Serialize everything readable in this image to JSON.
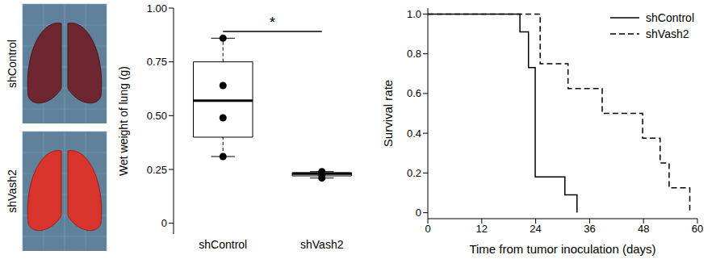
{
  "images": {
    "labels": [
      "shControl",
      "shVash2"
    ]
  },
  "chart_data": [
    {
      "type": "box",
      "ylabel": "Wet weight of lung (g)",
      "categories": [
        "shControl",
        "shVash2"
      ],
      "boxes": [
        {
          "min": 0.31,
          "q1": 0.4,
          "median": 0.57,
          "q3": 0.75,
          "max": 0.86,
          "points": [
            0.86,
            0.64,
            0.49,
            0.31
          ]
        },
        {
          "min": 0.21,
          "q1": 0.22,
          "median": 0.23,
          "q3": 0.235,
          "max": 0.24,
          "points": [
            0.24,
            0.225,
            0.21
          ]
        }
      ],
      "color": "#000000",
      "ylim": [
        -0.05,
        1.0
      ],
      "yticks": [
        0,
        0.25,
        {
          "value": 0.5,
          "label": "0.50"
        },
        0.75,
        {
          "value": 1.0,
          "label": "1.00"
        }
      ],
      "annotations": [
        {
          "text": "*",
          "between": [
            "shControl",
            "shVash2"
          ]
        }
      ]
    },
    {
      "type": "line",
      "xlabel": "Time from tumor inoculation (days)",
      "ylabel": "Survival rate",
      "series": [
        {
          "name": "shControl",
          "color": "#000000",
          "line_style": "solid",
          "x": [
            0,
            20.5,
            22.4,
            23.9,
            30.5,
            33.2
          ],
          "values": [
            1.0,
            0.91,
            0.73,
            0.18,
            0.09,
            0
          ]
        },
        {
          "name": "shVash2",
          "color": "#000000",
          "line_style": "dashed",
          "x": [
            0,
            25,
            31.2,
            38.8,
            47.8,
            51.7,
            53.7,
            58.3
          ],
          "values": [
            1.0,
            0.75,
            0.625,
            0.5,
            0.375,
            0.25,
            0.125,
            0
          ]
        }
      ],
      "xlim": [
        0,
        60
      ],
      "xticks": [
        0,
        12,
        24,
        36,
        48,
        60
      ],
      "ylim": [
        -0.03,
        1.03
      ],
      "yticks": [
        0,
        0.2,
        0.4,
        0.6,
        0.8,
        {
          "value": 1.0,
          "label": "1.0"
        }
      ],
      "legend": "upper right"
    }
  ]
}
